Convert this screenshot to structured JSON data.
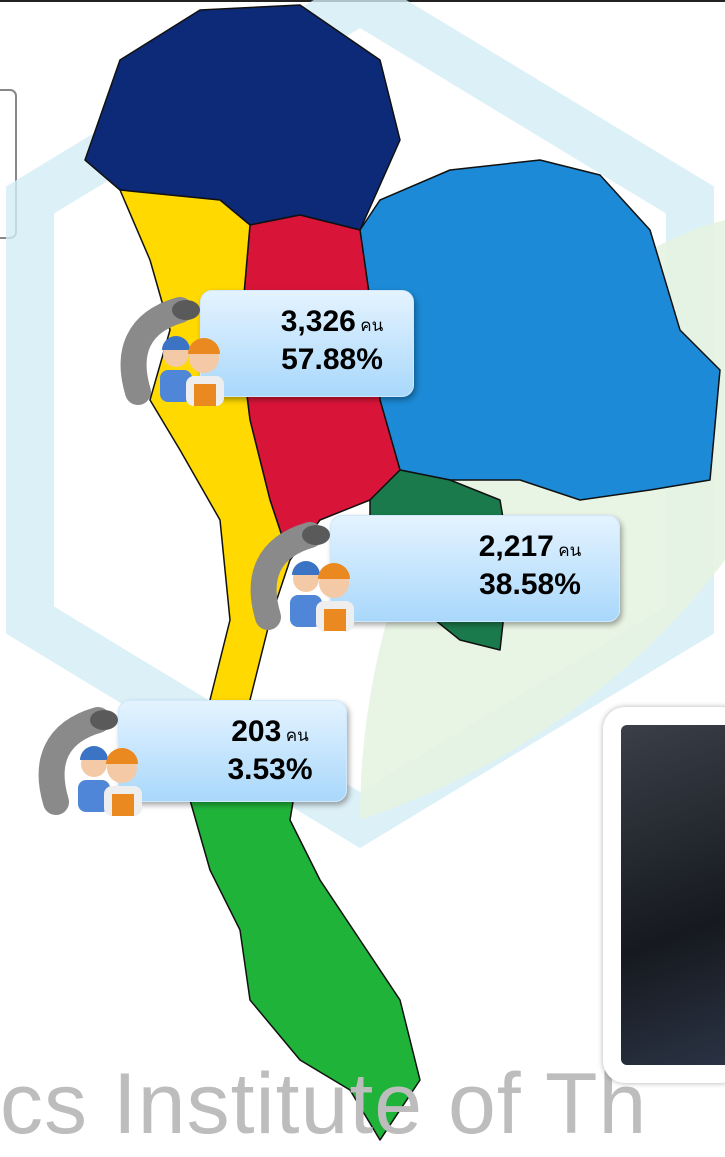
{
  "watermark": "cs Institute of Th",
  "callouts": [
    {
      "count": "3,326",
      "unit": "คน",
      "percent": "57.88%"
    },
    {
      "count": "2,217",
      "unit": "คน",
      "percent": "38.58%"
    },
    {
      "count": "203",
      "unit": "คน",
      "percent": "3.53%"
    }
  ]
}
